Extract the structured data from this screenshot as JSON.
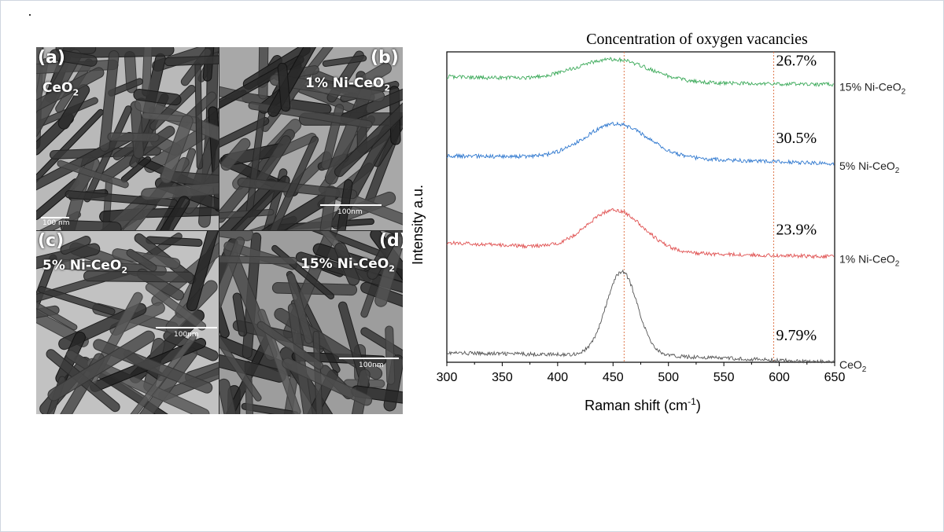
{
  "tem_panels": [
    {
      "letter": "(a)",
      "sample": "CeO",
      "sample_sub": "2",
      "scale_label": "100 nm"
    },
    {
      "letter": "(b)",
      "sample": "1% Ni-CeO",
      "sample_sub": "2",
      "scale_label": "100nm"
    },
    {
      "letter": "(c)",
      "sample": "5% Ni-CeO",
      "sample_sub": "2",
      "scale_label": "100nm"
    },
    {
      "letter": "(d)",
      "sample": "15% Ni-CeO",
      "sample_sub": "2",
      "scale_label": "100nm"
    }
  ],
  "chart_data": {
    "type": "line",
    "title": "Concentration of oxygen vacancies",
    "xlabel": "Raman shift (cm",
    "xlabel_sup": "-1",
    "xlabel_end": ")",
    "ylabel": "Intensity a.u.",
    "xlim": [
      300,
      650
    ],
    "xticks": [
      300,
      350,
      400,
      450,
      500,
      550,
      600,
      650
    ],
    "reference_lines_x": [
      460,
      595
    ],
    "series": [
      {
        "name": "CeO",
        "name_sub": "2",
        "color": "#555555",
        "concentration": "9.79%",
        "baseline": 0.03,
        "peak_center": 458,
        "peak_height": 0.27,
        "peak_width": 14,
        "tail": 0.005,
        "right_ends": [
          [
            300,
            0.03
          ],
          [
            500,
            0.02
          ],
          [
            650,
            0.0
          ]
        ]
      },
      {
        "name": "1% Ni-CeO",
        "name_sub": "2",
        "color": "#e05252",
        "concentration": "23.9%",
        "baseline": 0.385,
        "peak_center": 452,
        "peak_height": 0.13,
        "peak_width": 25,
        "right_ends": [
          [
            300,
            0.385
          ],
          [
            520,
            0.35
          ],
          [
            650,
            0.34
          ]
        ]
      },
      {
        "name": "5% Ni-CeO",
        "name_sub": "2",
        "color": "#2f78cf",
        "concentration": "30.5%",
        "baseline": 0.665,
        "peak_center": 453,
        "peak_height": 0.11,
        "peak_width": 28,
        "right_ends": [
          [
            300,
            0.665
          ],
          [
            520,
            0.655
          ],
          [
            650,
            0.64
          ]
        ]
      },
      {
        "name": "15% Ni-CeO",
        "name_sub": "2",
        "color": "#3caa5a",
        "concentration": "26.7%",
        "baseline": 0.92,
        "peak_center": 450,
        "peak_height": 0.07,
        "peak_width": 32,
        "right_ends": [
          [
            300,
            0.92
          ],
          [
            520,
            0.9
          ],
          [
            650,
            0.895
          ]
        ]
      }
    ]
  }
}
